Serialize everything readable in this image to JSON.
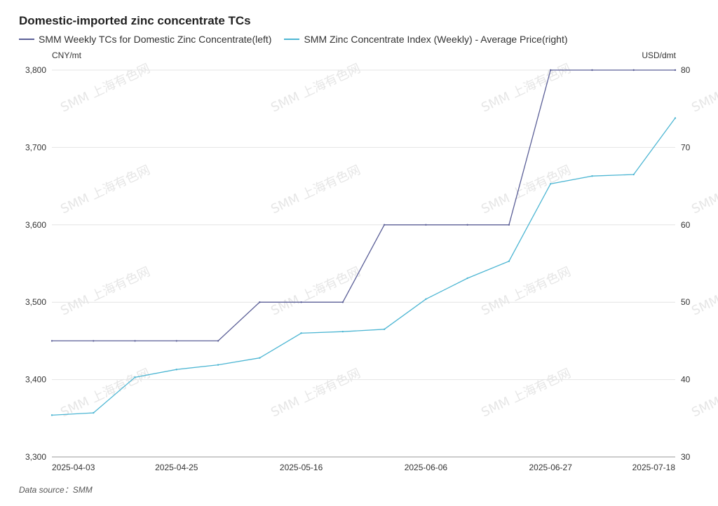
{
  "watermark": "SMM 上海有色网",
  "source_text": "Data source：SMM",
  "chart_data": {
    "type": "line",
    "title": "Domestic-imported zinc concentrate TCs",
    "x": [
      "2025-04-03",
      "2025-04-10",
      "2025-04-17",
      "2025-04-25",
      "2025-05-01",
      "2025-05-09",
      "2025-05-16",
      "2025-05-23",
      "2025-05-30",
      "2025-06-06",
      "2025-06-13",
      "2025-06-20",
      "2025-06-27",
      "2025-07-04",
      "2025-07-11",
      "2025-07-18"
    ],
    "x_tick_labels": [
      "2025-04-03",
      "2025-04-25",
      "2025-05-16",
      "2025-06-06",
      "2025-06-27",
      "2025-07-18"
    ],
    "y_left": {
      "unit": "CNY/mt",
      "ylim": [
        3300,
        3800
      ],
      "ticks": [
        "3,300",
        "3,400",
        "3,500",
        "3,600",
        "3,700",
        "3,800"
      ],
      "tick_values": [
        3300,
        3400,
        3500,
        3600,
        3700,
        3800
      ]
    },
    "y_right": {
      "unit": "USD/dmt",
      "ylim": [
        30,
        80
      ],
      "ticks": [
        "30",
        "40",
        "50",
        "60",
        "70",
        "80"
      ],
      "tick_values": [
        30,
        40,
        50,
        60,
        70,
        80
      ]
    },
    "grid": true,
    "legend_position": "top-left",
    "series": [
      {
        "name": "SMM Weekly TCs for Domestic Zinc Concentrate(left)",
        "axis": "left",
        "color": "#5b5f97",
        "values": [
          3450,
          3450,
          3450,
          3450,
          3450,
          3500,
          3500,
          3500,
          3600,
          3600,
          3600,
          3600,
          3800,
          3800,
          3800,
          3800
        ]
      },
      {
        "name": "SMM Zinc Concentrate Index (Weekly) - Average Price(right)",
        "axis": "right",
        "color": "#4db6d3",
        "values": [
          35.4,
          35.7,
          40.3,
          41.3,
          41.9,
          42.8,
          46.0,
          46.2,
          46.5,
          50.4,
          53.1,
          55.3,
          65.3,
          66.3,
          66.5,
          73.8
        ]
      }
    ]
  }
}
